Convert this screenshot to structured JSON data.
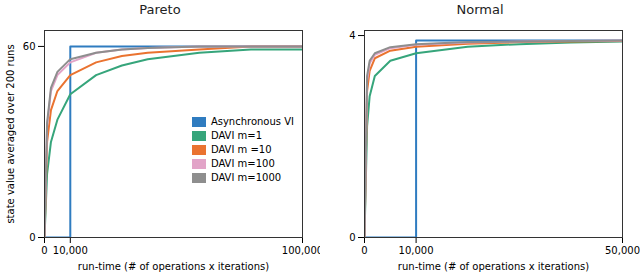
{
  "chart_data": [
    {
      "type": "line",
      "title": "Pareto",
      "xlabel": "run-time (# of operations x iterations)",
      "ylabel": "state value averaged over 200 runs",
      "xlim": [
        0,
        100000
      ],
      "xticks": [
        0,
        {
          "value": 10000,
          "label": "10,000"
        },
        {
          "value": 100000,
          "label": "100,000"
        }
      ],
      "ylim": [
        0,
        65
      ],
      "yticks": [
        0,
        60
      ],
      "legend": "right",
      "series": [
        {
          "name": "Asynchronous VI",
          "color": "#2f7cc0",
          "x": [
            0,
            10000,
            10000,
            100000
          ],
          "values": [
            0,
            0,
            60,
            60
          ]
        },
        {
          "name": "DAVI m=1",
          "color": "#36a57b",
          "x": [
            0,
            1000,
            2500,
            5000,
            10000,
            20000,
            30000,
            40000,
            60000,
            80000,
            100000
          ],
          "values": [
            0,
            20,
            30,
            37,
            45,
            51,
            54,
            56,
            58,
            59,
            59
          ]
        },
        {
          "name": "DAVI m =10",
          "color": "#ea7330",
          "x": [
            0,
            1000,
            2500,
            5000,
            10000,
            20000,
            30000,
            40000,
            60000,
            80000,
            100000
          ],
          "values": [
            0,
            30,
            40,
            46,
            51,
            55,
            57,
            58,
            59,
            60,
            60
          ]
        },
        {
          "name": "DAVI m=100",
          "color": "#e2a4c8",
          "x": [
            0,
            1000,
            2500,
            5000,
            10000,
            20000,
            30000,
            40000,
            60000,
            80000,
            100000
          ],
          "values": [
            0,
            35,
            46,
            51,
            55,
            58,
            59,
            59.5,
            60,
            60,
            60
          ]
        },
        {
          "name": "DAVI m=1000",
          "color": "#8e8e8e",
          "x": [
            0,
            1000,
            2500,
            5000,
            10000,
            20000,
            30000,
            40000,
            60000,
            80000,
            100000
          ],
          "values": [
            0,
            36,
            47,
            52,
            56,
            58,
            59,
            59.5,
            60,
            60,
            60
          ]
        }
      ]
    },
    {
      "type": "line",
      "title": "Normal",
      "xlabel": "run-time (# of operations x iterations)",
      "xlim": [
        0,
        50000
      ],
      "xticks": [
        0,
        {
          "value": 10000,
          "label": "10,000"
        },
        {
          "value": 50000,
          "label": "50,000"
        }
      ],
      "ylim": [
        0,
        4.1
      ],
      "yticks": [
        0,
        4
      ],
      "series": [
        {
          "name": "Asynchronous VI",
          "color": "#2f7cc0",
          "x": [
            0,
            10000,
            10000,
            50000
          ],
          "values": [
            0,
            0,
            3.9,
            3.9
          ]
        },
        {
          "name": "DAVI m=1",
          "color": "#36a57b",
          "x": [
            0,
            500,
            1000,
            2000,
            5000,
            10000,
            20000,
            30000,
            40000,
            50000
          ],
          "values": [
            0,
            2.2,
            2.8,
            3.2,
            3.5,
            3.65,
            3.78,
            3.83,
            3.86,
            3.88
          ]
        },
        {
          "name": "DAVI m =10",
          "color": "#ea7330",
          "x": [
            0,
            500,
            1000,
            2000,
            5000,
            10000,
            20000,
            30000,
            40000,
            50000
          ],
          "values": [
            0,
            2.9,
            3.3,
            3.55,
            3.7,
            3.78,
            3.84,
            3.87,
            3.88,
            3.89
          ]
        },
        {
          "name": "DAVI m=100",
          "color": "#e2a4c8",
          "x": [
            0,
            500,
            1000,
            2000,
            5000,
            10000,
            20000,
            30000,
            40000,
            50000
          ],
          "values": [
            0,
            3.1,
            3.45,
            3.62,
            3.75,
            3.82,
            3.86,
            3.88,
            3.89,
            3.9
          ]
        },
        {
          "name": "DAVI m=1000",
          "color": "#8e8e8e",
          "x": [
            0,
            500,
            1000,
            2000,
            5000,
            10000,
            20000,
            30000,
            40000,
            50000
          ],
          "values": [
            0,
            3.2,
            3.5,
            3.65,
            3.77,
            3.83,
            3.87,
            3.88,
            3.89,
            3.9
          ]
        }
      ]
    }
  ]
}
